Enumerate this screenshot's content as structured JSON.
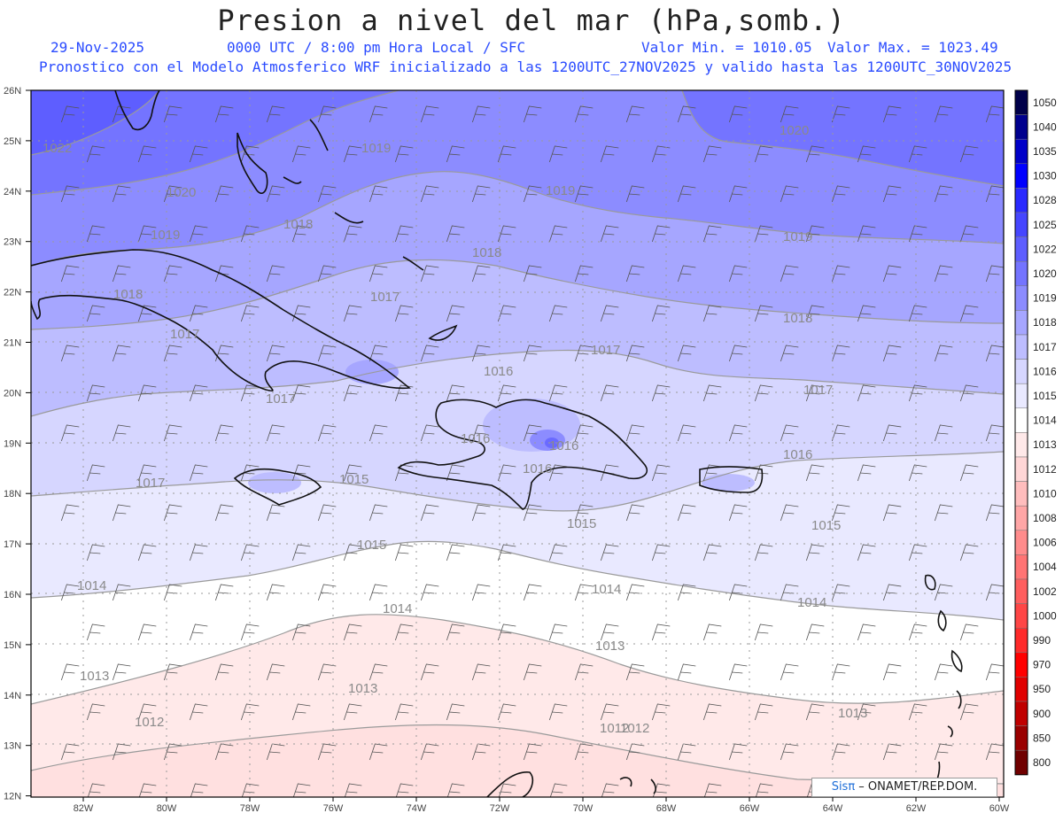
{
  "title": "Presion a nivel del mar (hPa,somb.)",
  "date": "29-Nov-2025",
  "time_label": "0000 UTC / 8:00 pm Hora Local / SFC",
  "min_label": "Valor Min. = 1010.05",
  "max_label": "Valor Max. = 1023.49",
  "model_line": "Pronostico con el Modelo Atmosferico WRF inicializado a las 1200UTC_27NOV2025 y valido hasta las  1200UTC_30NOV2025",
  "credit_brand": "Sisπ",
  "credit_text": " – ONAMET/REP.DOM.",
  "lat_labels": [
    "26N",
    "25N",
    "24N",
    "23N",
    "22N",
    "21N",
    "20N",
    "19N",
    "18N",
    "17N",
    "16N",
    "15N",
    "14N",
    "13N",
    "12N"
  ],
  "lon_labels": [
    "82W",
    "80W",
    "78W",
    "76W",
    "74W",
    "72W",
    "70W",
    "68W",
    "66W",
    "64W",
    "62W",
    "60W"
  ],
  "legend_levels": [
    "1050",
    "1040",
    "1035",
    "1030",
    "1028",
    "1025",
    "1022",
    "1020",
    "1019",
    "1018",
    "1017",
    "1016",
    "1015",
    "1014",
    "1013",
    "1012",
    "1010",
    "1008",
    "1006",
    "1004",
    "1002",
    "1000",
    "990",
    "970",
    "950",
    "900",
    "850",
    "800"
  ],
  "legend_colors": [
    "#00004a",
    "#00008e",
    "#0000c8",
    "#0000ff",
    "#2a2aff",
    "#4646ff",
    "#5e5eff",
    "#7474ff",
    "#8c8cff",
    "#a6a6ff",
    "#bdbdff",
    "#d6d6ff",
    "#e9e9ff",
    "#ffffff",
    "#ffe9e9",
    "#ffd6d6",
    "#ffbdbd",
    "#ffa6a6",
    "#ff8c8c",
    "#ff7474",
    "#ff5e5e",
    "#ff4646",
    "#ff2a2a",
    "#ff0000",
    "#e00000",
    "#c00000",
    "#9a0000",
    "#700000"
  ],
  "isobar_labels": [
    "1022",
    "1020",
    "1020",
    "1019",
    "1019",
    "1019",
    "1019",
    "1018",
    "1018",
    "1018",
    "1018",
    "1017",
    "1017",
    "1017",
    "1017",
    "1017",
    "1016",
    "1016",
    "1016",
    "1016",
    "1016",
    "1017",
    "1015",
    "1015",
    "1015",
    "1015",
    "1014",
    "1014",
    "1014",
    "1014",
    "1013",
    "1013",
    "1013",
    "1013",
    "1012",
    "1012",
    "1012"
  ]
}
